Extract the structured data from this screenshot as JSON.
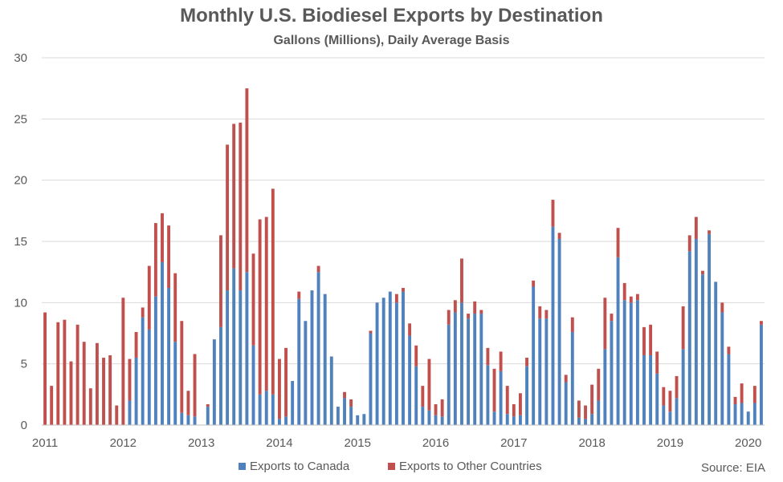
{
  "chart_data": {
    "type": "bar",
    "stacked": true,
    "title": "Monthly U.S. Biodiesel Exports by Destination",
    "subtitle": "Gallons (Millions), Daily Average Basis",
    "source": "Source: EIA",
    "ylim": [
      0,
      30
    ],
    "yticks": [
      0,
      5,
      10,
      15,
      20,
      25,
      30
    ],
    "xtick_labels": [
      "2011",
      "2012",
      "2013",
      "2014",
      "2015",
      "2016",
      "2017",
      "2018",
      "2019",
      "2020"
    ],
    "grid": true,
    "legend_position": "bottom",
    "series": [
      {
        "name": "Exports to Canada",
        "color": "#4F81BD",
        "values": [
          0,
          0,
          0,
          0,
          0,
          0,
          0,
          0,
          0,
          0,
          0,
          0,
          0,
          2,
          5.5,
          8.8,
          7.8,
          10.5,
          13.3,
          11.2,
          6.8,
          1,
          0.8,
          0.7,
          0,
          1.5,
          7,
          8,
          11,
          12.8,
          11,
          12.5,
          6.5,
          2.5,
          2.8,
          2.5,
          0.5,
          0.7,
          3.6,
          10.3,
          8.5,
          11,
          12.5,
          10.7,
          5.6,
          1.5,
          2.2,
          1.5,
          0.8,
          0.9,
          7.5,
          10,
          10.4,
          10.9,
          10,
          10.9,
          7.3,
          4.8,
          1.5,
          1.2,
          0.8,
          0.7,
          8.2,
          9.2,
          10,
          8.7,
          9.1,
          9.1,
          4.9,
          1.1,
          4.4,
          0.9,
          0.7,
          0.8,
          4.8,
          11.3,
          8.7,
          8.7,
          16.2,
          15.2,
          3.5,
          7.6,
          0.6,
          0.5,
          0.9,
          2,
          6.2,
          8.5,
          13.7,
          10.2,
          10,
          10.2,
          5.7,
          5.7,
          4.2,
          1.6,
          1.1,
          2.2,
          6.2,
          14.2,
          15.2,
          12.3,
          15.6,
          11.7,
          9.2,
          5.8,
          1.7,
          1.8,
          1.1,
          1.8,
          8.2
        ]
      },
      {
        "name": "Exports to Other Countries",
        "color": "#C0504D",
        "values": [
          9.2,
          3.2,
          8.4,
          8.6,
          5.2,
          8.2,
          6.8,
          3,
          6.7,
          5.5,
          5.7,
          1.6,
          10.4,
          3.4,
          2.1,
          0.8,
          5.2,
          6,
          4,
          5.1,
          5.6,
          7.5,
          2,
          5.1,
          0,
          0.2,
          0,
          7.5,
          11.9,
          11.8,
          13.7,
          15,
          7.5,
          14.3,
          14.2,
          16.8,
          4.9,
          5.6,
          0,
          0.6,
          0,
          0,
          0.5,
          0,
          0,
          0,
          0.5,
          0.6,
          0,
          0,
          0.2,
          0,
          0,
          0,
          0.7,
          0.3,
          1,
          1.7,
          1.7,
          4.2,
          0.9,
          1.4,
          1.2,
          1,
          3.6,
          0.4,
          1,
          0.3,
          1.4,
          3.5,
          1.6,
          2.3,
          1,
          1.8,
          0.7,
          0.5,
          1,
          0.7,
          2.2,
          0.5,
          0.6,
          1.2,
          1.4,
          1.1,
          2.4,
          2.6,
          4.2,
          0.6,
          2.4,
          1.4,
          0.5,
          0.5,
          2.3,
          2.5,
          1.8,
          1.5,
          1.7,
          1.8,
          3.5,
          1.3,
          1.8,
          0.3,
          0.3,
          0,
          0.8,
          0.6,
          0.6,
          1.6,
          0,
          1.4,
          0.3
        ]
      }
    ]
  }
}
